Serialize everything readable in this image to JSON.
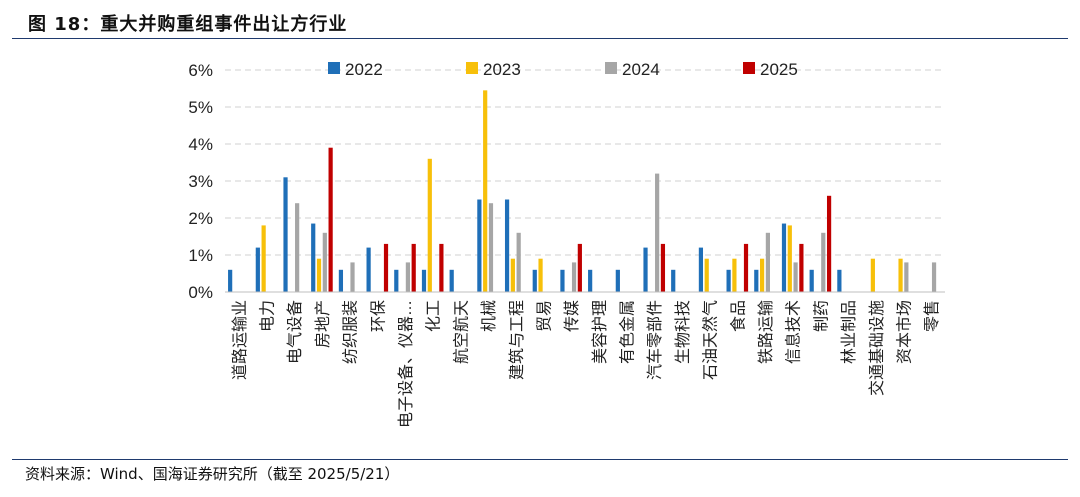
{
  "figure": {
    "title": "图 18：重大并购重组事件出让方行业",
    "source": "资料来源：Wind、国海证券研究所（截至 2025/5/21）"
  },
  "colors": {
    "2022": "#1f6fb8",
    "2023": "#f7c00a",
    "2024": "#a6a6a6",
    "2025": "#c00000",
    "rule": "#1f3a6e",
    "grid": "#d0d0d0"
  },
  "chart_data": {
    "type": "bar",
    "title": "",
    "xlabel": "",
    "ylabel": "",
    "ylim": [
      0,
      6
    ],
    "y_tick_format": "percent",
    "yticks": [
      "0%",
      "1%",
      "2%",
      "3%",
      "4%",
      "5%",
      "6%"
    ],
    "grid": true,
    "legend_position": "top",
    "categories": [
      "道路运输业",
      "电力",
      "电气设备",
      "房地产",
      "纺织服装",
      "环保",
      "电子设备、仪器…",
      "化工",
      "航空航天",
      "机械",
      "建筑与工程",
      "贸易",
      "传媒",
      "美容护理",
      "有色金属",
      "汽车零部件",
      "生物科技",
      "石油天然气",
      "食品",
      "铁路运输",
      "信息技术",
      "制药",
      "林业制品",
      "交通基础设施",
      "资本市场",
      "零售"
    ],
    "series": [
      {
        "name": "2022",
        "values": [
          0.6,
          1.2,
          3.1,
          1.85,
          0.6,
          1.2,
          0.6,
          0.6,
          0.6,
          2.5,
          2.5,
          0.6,
          0.6,
          0.6,
          0.6,
          1.2,
          0.6,
          1.2,
          0.6,
          0.6,
          1.85,
          0.6,
          0.6,
          0,
          0,
          0
        ]
      },
      {
        "name": "2023",
        "values": [
          0,
          1.8,
          0,
          0.9,
          0,
          0,
          0,
          3.6,
          0,
          5.45,
          0.9,
          0.9,
          0,
          0,
          0,
          0,
          0,
          0.9,
          0.9,
          0.9,
          1.8,
          0,
          0,
          0.9,
          0.9,
          0
        ]
      },
      {
        "name": "2024",
        "values": [
          0,
          0,
          2.4,
          1.6,
          0.8,
          0,
          0.8,
          0,
          0,
          2.4,
          1.6,
          0,
          0.8,
          0,
          0,
          3.2,
          0,
          0,
          0,
          1.6,
          0.8,
          1.6,
          0,
          0,
          0.8,
          0.8
        ]
      },
      {
        "name": "2025",
        "values": [
          0,
          0,
          0,
          3.9,
          0,
          1.3,
          1.3,
          1.3,
          0,
          0,
          0,
          0,
          1.3,
          0,
          0,
          1.3,
          0,
          0,
          1.3,
          0,
          1.3,
          2.6,
          0,
          0,
          0,
          0
        ]
      }
    ]
  }
}
